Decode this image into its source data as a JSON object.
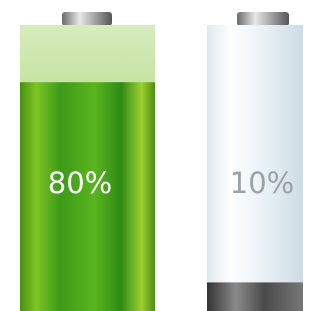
{
  "batteries": [
    {
      "level": 80,
      "label": "80%"
    },
    {
      "level": 10,
      "label": "10%"
    }
  ]
}
